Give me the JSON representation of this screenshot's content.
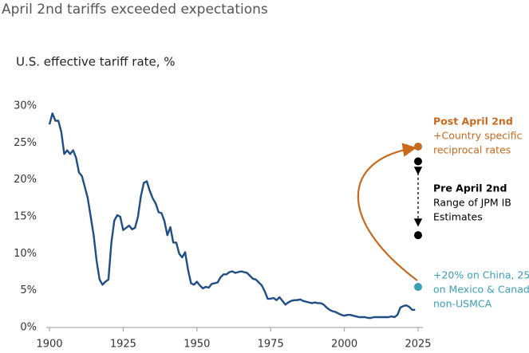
{
  "chart_data": {
    "type": "line",
    "title": "April 2nd tariffs exceeded expectations",
    "subtitle": "U.S. effective tariff rate, %",
    "x": [
      1900,
      1901,
      1902,
      1903,
      1904,
      1905,
      1906,
      1907,
      1908,
      1909,
      1910,
      1911,
      1912,
      1913,
      1914,
      1915,
      1916,
      1917,
      1918,
      1919,
      1920,
      1921,
      1922,
      1923,
      1924,
      1925,
      1926,
      1927,
      1928,
      1929,
      1930,
      1931,
      1932,
      1933,
      1934,
      1935,
      1936,
      1937,
      1938,
      1939,
      1940,
      1941,
      1942,
      1943,
      1944,
      1945,
      1946,
      1947,
      1948,
      1949,
      1950,
      1951,
      1952,
      1953,
      1954,
      1955,
      1956,
      1957,
      1958,
      1959,
      1960,
      1961,
      1962,
      1963,
      1964,
      1965,
      1966,
      1967,
      1968,
      1969,
      1970,
      1971,
      1972,
      1973,
      1974,
      1975,
      1976,
      1977,
      1978,
      1979,
      1980,
      1981,
      1982,
      1983,
      1984,
      1985,
      1986,
      1987,
      1988,
      1989,
      1990,
      1991,
      1992,
      1993,
      1994,
      1995,
      1996,
      1997,
      1998,
      1999,
      2000,
      2001,
      2002,
      2003,
      2004,
      2005,
      2006,
      2007,
      2008,
      2009,
      2010,
      2011,
      2012,
      2013,
      2014,
      2015,
      2016,
      2017,
      2018,
      2019,
      2020,
      2021,
      2022,
      2023,
      2024
    ],
    "series": [
      {
        "color": "#1f4e85",
        "values": [
          27.5,
          29,
          28,
          28,
          26.5,
          23.5,
          24,
          23.5,
          24,
          23,
          21,
          20.5,
          19,
          17.5,
          15,
          12.5,
          9,
          6.5,
          5.8,
          6.2,
          6.5,
          11.5,
          14.5,
          15.2,
          15,
          13.2,
          13.5,
          13.8,
          13.3,
          13.5,
          15,
          17.8,
          19.6,
          19.8,
          18.5,
          17.5,
          16.8,
          15.6,
          15.5,
          14.4,
          12.5,
          13.6,
          11.5,
          11.5,
          10,
          9.5,
          10.2,
          7.8,
          6,
          5.8,
          6.2,
          5.7,
          5.3,
          5.5,
          5.4,
          5.9,
          6,
          6.1,
          6.8,
          7.2,
          7.2,
          7.5,
          7.6,
          7.4,
          7.5,
          7.6,
          7.5,
          7.4,
          7,
          6.6,
          6.5,
          6.1,
          5.7,
          4.9,
          3.9,
          3.9,
          4,
          3.7,
          4.1,
          3.6,
          3.1,
          3.4,
          3.6,
          3.7,
          3.7,
          3.8,
          3.6,
          3.5,
          3.4,
          3.3,
          3.4,
          3.3,
          3.3,
          3.1,
          2.7,
          2.4,
          2.2,
          2.1,
          1.9,
          1.7,
          1.6,
          1.7,
          1.7,
          1.6,
          1.5,
          1.4,
          1.4,
          1.4,
          1.3,
          1.3,
          1.4,
          1.4,
          1.4,
          1.4,
          1.4,
          1.4,
          1.5,
          1.4,
          1.7,
          2.7,
          2.9,
          3.0,
          2.8,
          2.4,
          2.4
        ]
      }
    ],
    "points": [
      {
        "x": 2025,
        "value": 24.5,
        "color": "#c8691c"
      },
      {
        "x": 2025,
        "value": 22.5,
        "color": "#000000"
      },
      {
        "x": 2025,
        "value": 12.5,
        "color": "#000000"
      },
      {
        "x": 2025,
        "value": 5.5,
        "color": "#3a9fb5"
      }
    ],
    "annotations": [
      {
        "heading": "Post April 2nd",
        "lines": [
          "+Country specific",
          "reciprocal rates"
        ],
        "color": "#c8691c"
      },
      {
        "heading": "Pre April 2nd",
        "lines": [
          "Range of JPM IB",
          "Estimates"
        ],
        "color": "#000000"
      },
      {
        "lines": [
          "+20% on China, 25%",
          "on Mexico & Canada",
          "non-USMCA"
        ],
        "color": "#3a9fb5"
      }
    ],
    "xlim": [
      1900,
      2025
    ],
    "ylim": [
      0,
      30
    ],
    "xticks": [
      1900,
      1925,
      1950,
      1975,
      2000,
      2025
    ],
    "yticks": [
      {
        "value": 0,
        "label": "0%"
      },
      {
        "value": 5,
        "label": "5%"
      },
      {
        "value": 10,
        "label": "10%"
      },
      {
        "value": 15,
        "label": "15%"
      },
      {
        "value": 20,
        "label": "20%"
      },
      {
        "value": 25,
        "label": "25%"
      },
      {
        "value": 30,
        "label": "30%"
      }
    ],
    "grid": false
  }
}
